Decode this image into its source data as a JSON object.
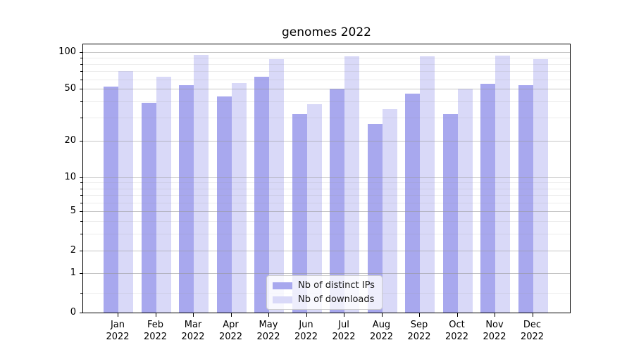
{
  "title": "genomes 2022",
  "chart_data": {
    "type": "bar",
    "title": "genomes 2022",
    "categories": [
      {
        "month": "Jan",
        "year": "2022"
      },
      {
        "month": "Feb",
        "year": "2022"
      },
      {
        "month": "Mar",
        "year": "2022"
      },
      {
        "month": "Apr",
        "year": "2022"
      },
      {
        "month": "May",
        "year": "2022"
      },
      {
        "month": "Jun",
        "year": "2022"
      },
      {
        "month": "Jul",
        "year": "2022"
      },
      {
        "month": "Aug",
        "year": "2022"
      },
      {
        "month": "Sep",
        "year": "2022"
      },
      {
        "month": "Oct",
        "year": "2022"
      },
      {
        "month": "Nov",
        "year": "2022"
      },
      {
        "month": "Dec",
        "year": "2022"
      }
    ],
    "series": [
      {
        "name": "Nb of distinct IPs",
        "color": "#a8a8ee",
        "values": [
          52,
          39,
          54,
          44,
          63,
          32,
          50,
          27,
          46,
          32,
          55,
          54
        ]
      },
      {
        "name": "Nb of downloads",
        "color": "#d9d9f8",
        "values": [
          70,
          63,
          95,
          56,
          88,
          38,
          92,
          35,
          92,
          50,
          94,
          87
        ]
      }
    ],
    "yscale": "symlog",
    "y_ticks": [
      0,
      1,
      2,
      5,
      10,
      20,
      50,
      100
    ],
    "y_minor_ticks": [
      0.5,
      3,
      4,
      6,
      7,
      8,
      9,
      30,
      40,
      60,
      70,
      80,
      90
    ],
    "ylim": [
      0,
      105
    ],
    "grid": true,
    "legend_position": "lower center"
  },
  "colors": {
    "distinct_ips": "#a8a8ee",
    "downloads": "#d9d9f8",
    "grid_major": "#c9c9c9",
    "grid_minor": "#ececec",
    "axis": "#000000",
    "background": "#ffffff"
  }
}
